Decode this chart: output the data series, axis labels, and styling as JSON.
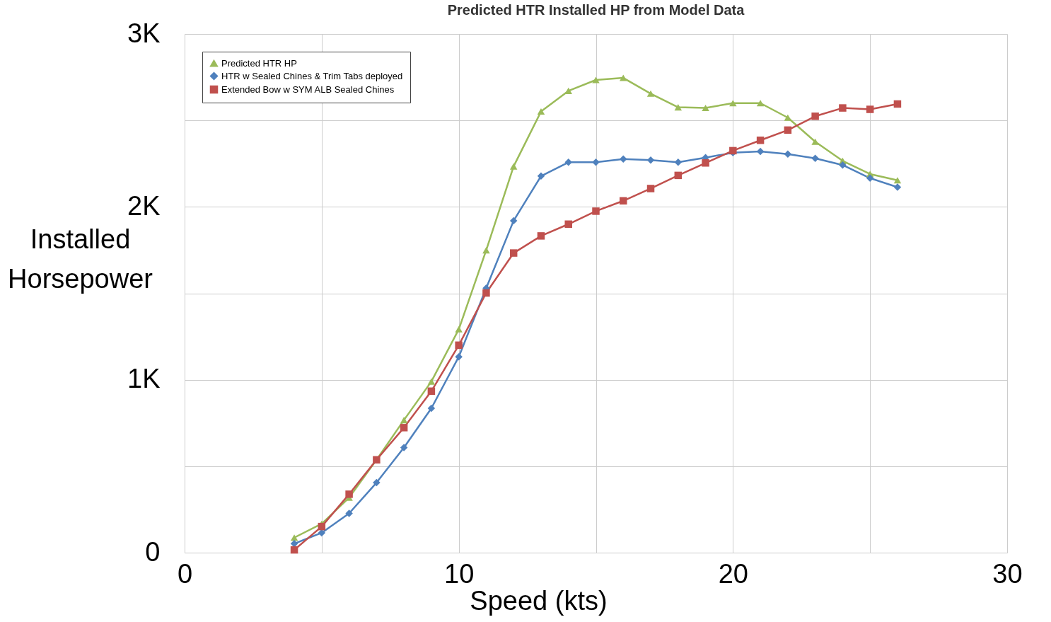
{
  "chart_data": {
    "type": "line",
    "title": "Predicted HTR Installed HP from Model Data",
    "xlabel": "Speed (kts)",
    "ylabel": "Installed Horsepower",
    "x": [
      4,
      5,
      6,
      7,
      8,
      9,
      10,
      11,
      12,
      13,
      14,
      15,
      16,
      17,
      18,
      19,
      20,
      21,
      22,
      23,
      24,
      25,
      26
    ],
    "series": [
      {
        "name": "Predicted HTR HP",
        "color": "#9bbb59",
        "marker": "triangle",
        "values": [
          87,
          167,
          318,
          537,
          767,
          990,
          1292,
          1749,
          2234,
          2552,
          2671,
          2734,
          2746,
          2655,
          2576,
          2572,
          2600,
          2600,
          2516,
          2377,
          2266,
          2190,
          2154
        ]
      },
      {
        "name": "HTR w Sealed Chines & Trim Tabs deployed",
        "color": "#4f81bd",
        "marker": "diamond",
        "values": [
          52,
          115,
          227,
          405,
          608,
          835,
          1133,
          1530,
          1920,
          2178,
          2258,
          2258,
          2277,
          2270,
          2258,
          2285,
          2313,
          2321,
          2305,
          2281,
          2242,
          2166,
          2114
        ]
      },
      {
        "name": "Extended Bow w SYM ALB Sealed Chines",
        "color": "#c0504d",
        "marker": "square",
        "values": [
          16,
          151,
          338,
          537,
          723,
          934,
          1200,
          1502,
          1733,
          1832,
          1900,
          1975,
          2035,
          2106,
          2182,
          2254,
          2325,
          2385,
          2444,
          2524,
          2572,
          2564,
          2595
        ]
      }
    ],
    "xlim": [
      0,
      30
    ],
    "xticks": [
      0,
      {
        "value": 5,
        "label": null
      },
      10,
      {
        "value": 15,
        "label": null
      },
      20,
      {
        "value": 25,
        "label": null
      },
      30
    ],
    "ylim": [
      0,
      3000
    ],
    "yticks": [
      {
        "value": 0,
        "label": "0"
      },
      {
        "value": 500,
        "label": null
      },
      {
        "value": 1000,
        "label": "1K"
      },
      {
        "value": 1500,
        "label": null
      },
      {
        "value": 2000,
        "label": "2K"
      },
      {
        "value": 2500,
        "label": null
      },
      {
        "value": 3000,
        "label": "3K"
      }
    ],
    "grid": true,
    "legend": "top left",
    "line_style": "solid"
  }
}
